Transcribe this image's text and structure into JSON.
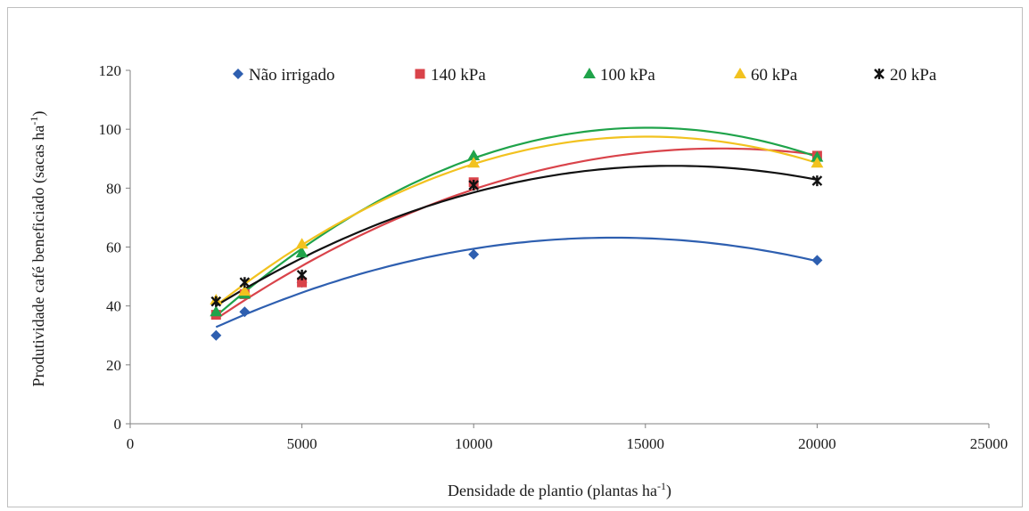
{
  "chart_data": {
    "type": "scatter",
    "xlabel": "Densidade de plantio (plantas ha",
    "xlabel_sup": "-1",
    "xlabel_end": ")",
    "ylabel": "Produtividade café beneficiado (sacas ha",
    "ylabel_sup": "-1",
    "ylabel_end": ")",
    "xlim": [
      0,
      25000
    ],
    "ylim": [
      0,
      120
    ],
    "x_ticks": [
      0,
      5000,
      10000,
      15000,
      20000,
      25000
    ],
    "y_ticks": [
      0,
      20,
      40,
      60,
      80,
      100,
      120
    ],
    "grid": false,
    "legend_position": "top",
    "trendline": "polynomial-2",
    "series": [
      {
        "name": "Não irrigado",
        "color": "#2e5fb0",
        "marker": "diamond",
        "x": [
          2500,
          3333,
          5000,
          10000,
          20000
        ],
        "y": [
          30,
          38,
          48,
          57.5,
          55.5
        ]
      },
      {
        "name": "140 kPa",
        "color": "#d9434a",
        "marker": "square",
        "x": [
          2500,
          3333,
          5000,
          10000,
          20000
        ],
        "y": [
          37,
          44,
          48,
          82,
          91
        ]
      },
      {
        "name": "100 kPa",
        "color": "#1fa34a",
        "marker": "triangle",
        "x": [
          2500,
          3333,
          5000,
          10000,
          20000
        ],
        "y": [
          38,
          44,
          58,
          91,
          90.5
        ]
      },
      {
        "name": "60 kPa",
        "color": "#f2c21f",
        "marker": "triangle",
        "x": [
          2500,
          3333,
          5000,
          10000,
          20000
        ],
        "y": [
          42,
          45,
          61,
          88.5,
          88.5
        ]
      },
      {
        "name": "20 kPa",
        "color": "#111111",
        "marker": "star",
        "x": [
          2500,
          3333,
          5000,
          10000,
          20000
        ],
        "y": [
          41.5,
          48,
          50.5,
          81,
          82.5
        ]
      }
    ]
  }
}
